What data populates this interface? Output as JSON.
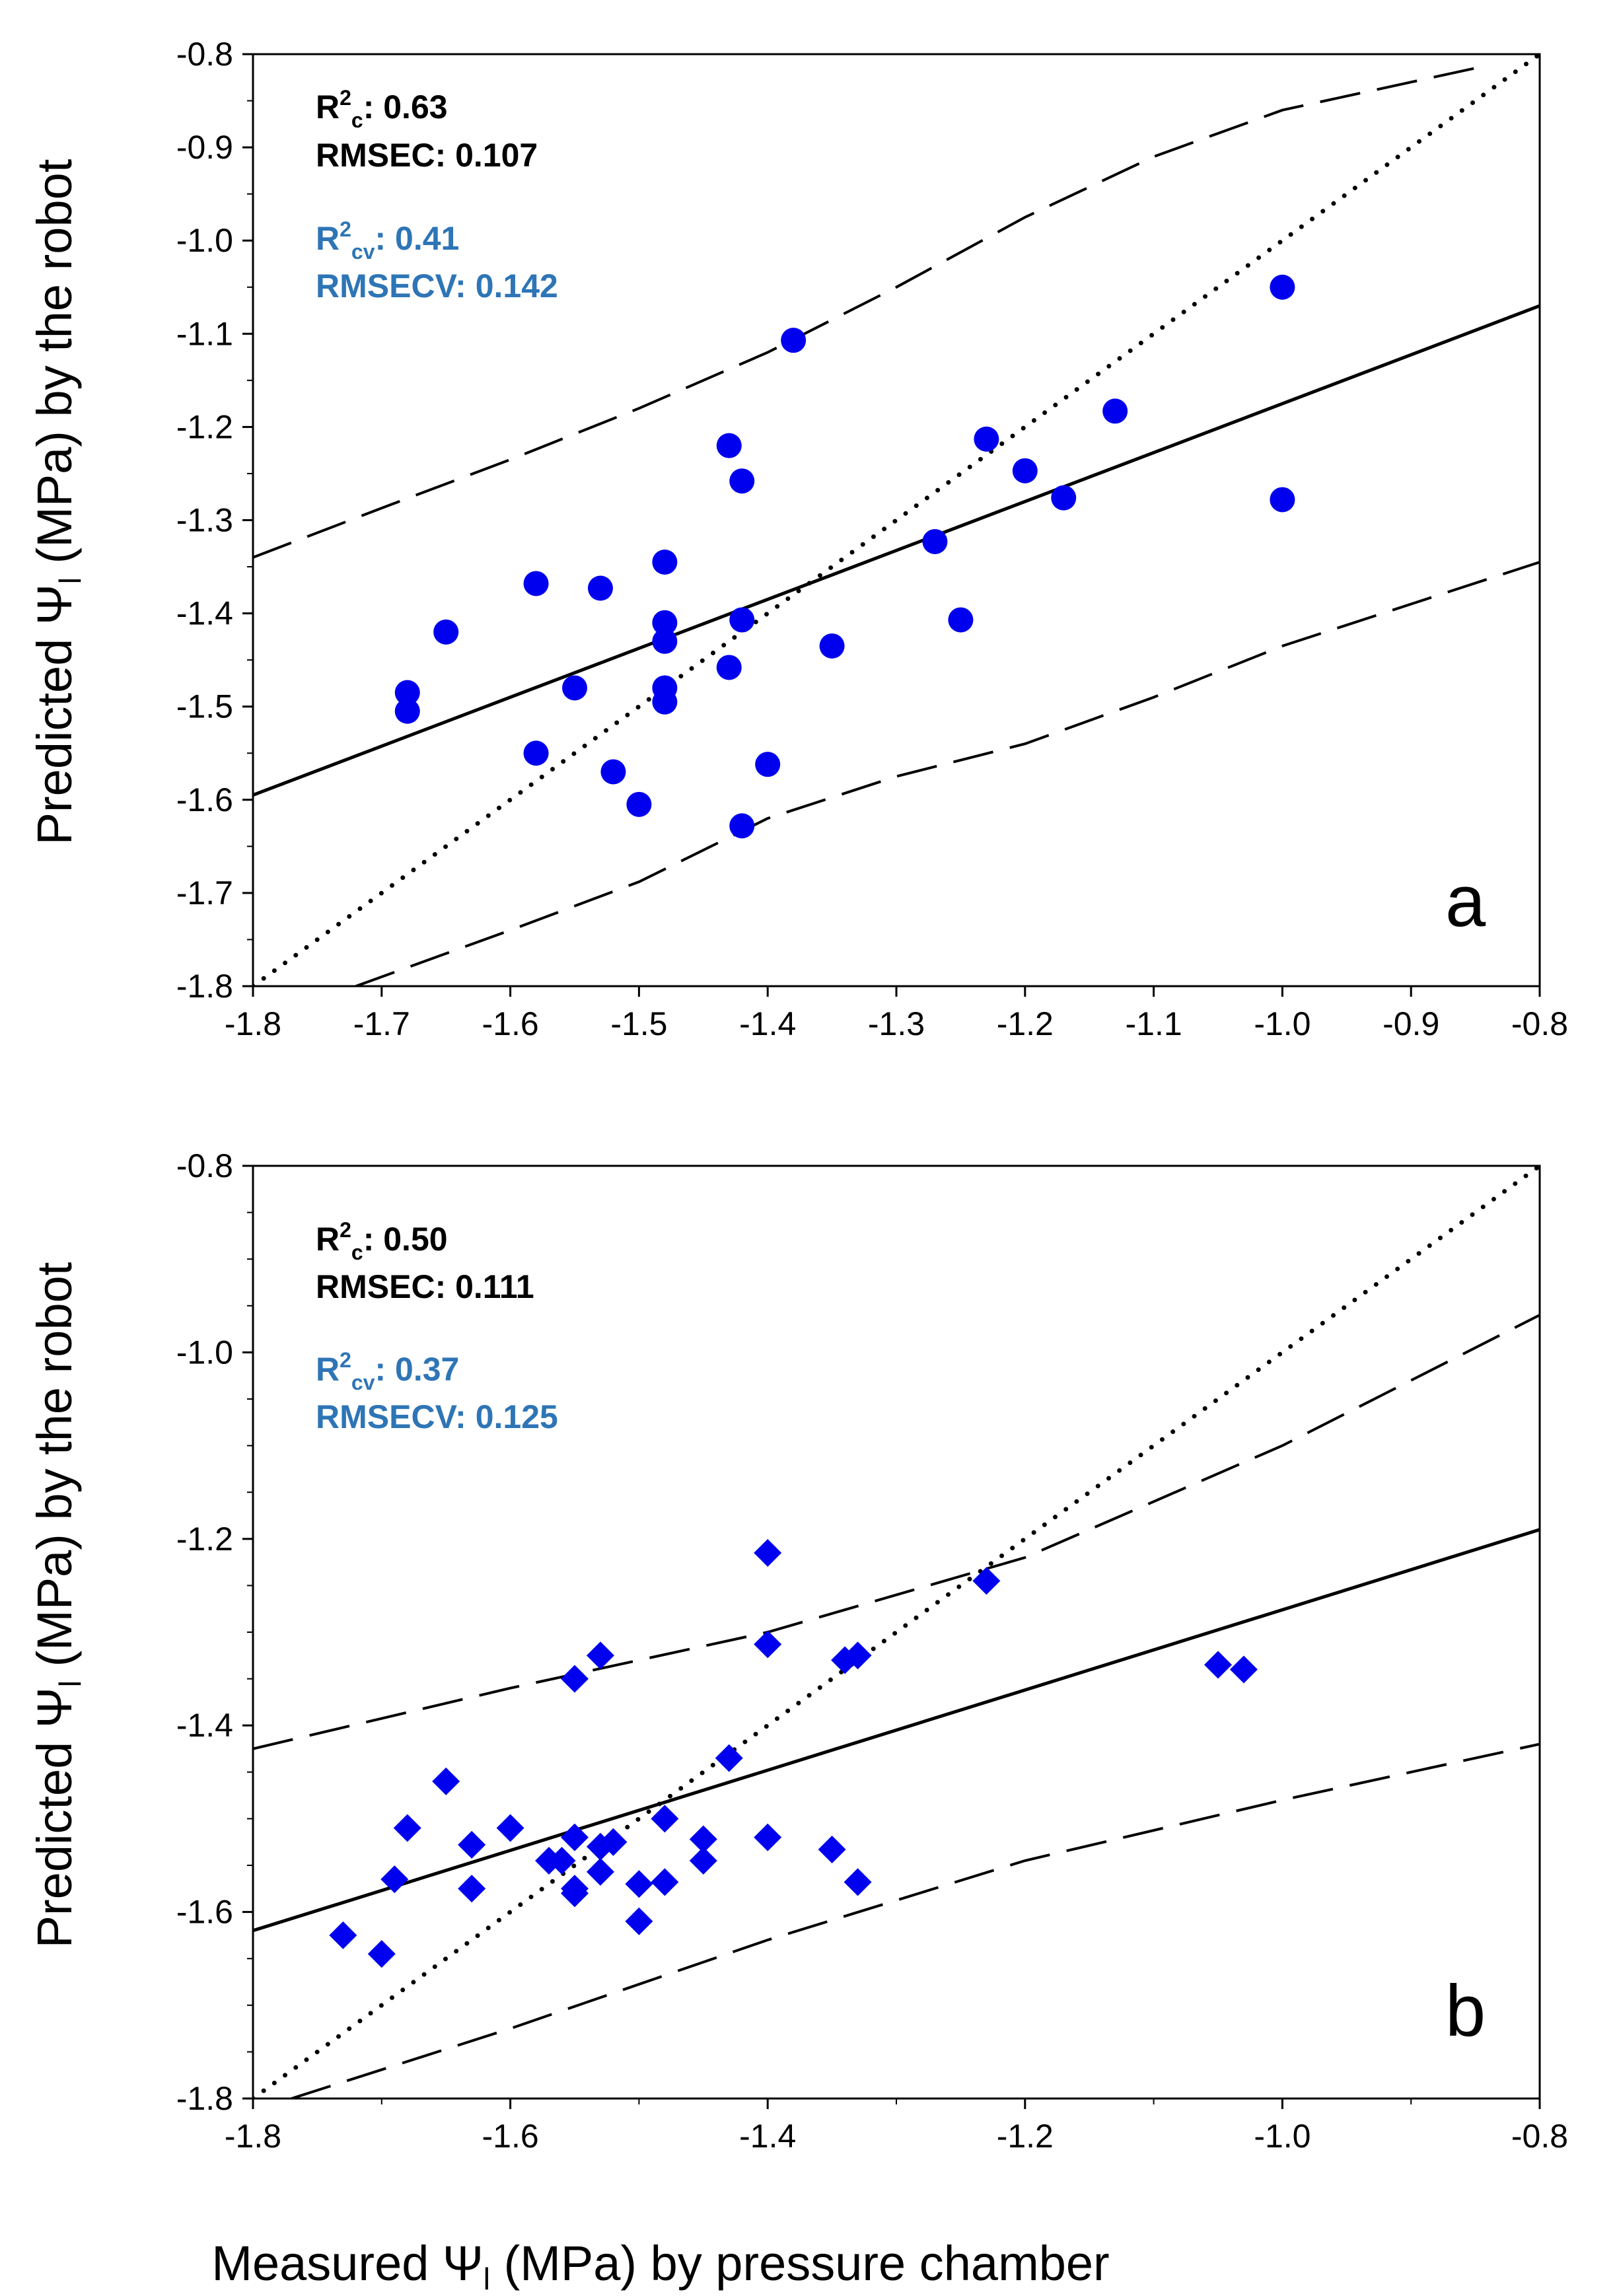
{
  "figure": {
    "xlabel_main": "Measured Ψ",
    "xlabel_sub": "l",
    "xlabel_rest": " (MPa) by pressure chamber",
    "ylabel_main": "Predicted Ψ",
    "ylabel_sub": "l",
    "ylabel_rest": " (MPa) by the robot"
  },
  "colors": {
    "points": "#0000ee",
    "stats_cv": "#2e75b6",
    "stats_c": "#000000",
    "lines": "#000000"
  },
  "chart_data": [
    {
      "type": "scatter",
      "panel_label": "a",
      "marker": "circle",
      "xlim": [
        -1.8,
        -0.8
      ],
      "ylim": [
        -1.8,
        -0.8
      ],
      "xticks": [
        "-1.8",
        "-1.7",
        "-1.6",
        "-1.5",
        "-1.4",
        "-1.3",
        "-1.2",
        "-1.1",
        "-1.0",
        "-0.9",
        "-0.8"
      ],
      "yticks": [
        "-0.8",
        "-0.9",
        "-1.0",
        "-1.1",
        "-1.2",
        "-1.3",
        "-1.4",
        "-1.5",
        "-1.6",
        "-1.7",
        "-1.8"
      ],
      "stats": {
        "r2c_prefix": "R",
        "r2c_sup": "2",
        "r2c_sub": "c",
        "r2c_value": ": 0.63",
        "rmsec": "RMSEC: 0.107",
        "r2cv_prefix": "R",
        "r2cv_sup": "2",
        "r2cv_sub": "cv",
        "r2cv_value": ": 0.41",
        "rmsecv": "RMSECV: 0.142"
      },
      "regression_line": [
        [
          -1.8,
          -1.595
        ],
        [
          -0.8,
          -1.07
        ]
      ],
      "one_to_one_line": [
        [
          -1.8,
          -1.8
        ],
        [
          -0.8,
          -0.8
        ]
      ],
      "prediction_band_upper": [
        [
          -1.8,
          -1.34
        ],
        [
          -1.7,
          -1.287
        ],
        [
          -1.6,
          -1.235
        ],
        [
          -1.5,
          -1.18
        ],
        [
          -1.4,
          -1.12
        ],
        [
          -1.3,
          -1.05
        ],
        [
          -1.2,
          -0.975
        ],
        [
          -1.1,
          -0.91
        ],
        [
          -1.0,
          -0.86
        ],
        [
          -0.9,
          -0.83
        ],
        [
          -0.85,
          -0.815
        ]
      ],
      "prediction_band_lower": [
        [
          -1.72,
          -1.8
        ],
        [
          -1.6,
          -1.74
        ],
        [
          -1.5,
          -1.688
        ],
        [
          -1.4,
          -1.62
        ],
        [
          -1.3,
          -1.575
        ],
        [
          -1.2,
          -1.54
        ],
        [
          -1.1,
          -1.49
        ],
        [
          -1.0,
          -1.435
        ],
        [
          -0.9,
          -1.39
        ],
        [
          -0.8,
          -1.345
        ]
      ],
      "points": [
        {
          "x": -1.68,
          "y": -1.485
        },
        {
          "x": -1.68,
          "y": -1.505
        },
        {
          "x": -1.65,
          "y": -1.42
        },
        {
          "x": -1.58,
          "y": -1.368
        },
        {
          "x": -1.58,
          "y": -1.55
        },
        {
          "x": -1.55,
          "y": -1.48
        },
        {
          "x": -1.53,
          "y": -1.373
        },
        {
          "x": -1.52,
          "y": -1.57
        },
        {
          "x": -1.5,
          "y": -1.605
        },
        {
          "x": -1.48,
          "y": -1.345
        },
        {
          "x": -1.48,
          "y": -1.41
        },
        {
          "x": -1.48,
          "y": -1.43
        },
        {
          "x": -1.48,
          "y": -1.48
        },
        {
          "x": -1.48,
          "y": -1.495
        },
        {
          "x": -1.43,
          "y": -1.22
        },
        {
          "x": -1.43,
          "y": -1.458
        },
        {
          "x": -1.42,
          "y": -1.258
        },
        {
          "x": -1.42,
          "y": -1.407
        },
        {
          "x": -1.42,
          "y": -1.628
        },
        {
          "x": -1.4,
          "y": -1.562
        },
        {
          "x": -1.38,
          "y": -1.107
        },
        {
          "x": -1.35,
          "y": -1.435
        },
        {
          "x": -1.27,
          "y": -1.323
        },
        {
          "x": -1.25,
          "y": -1.407
        },
        {
          "x": -1.23,
          "y": -1.213
        },
        {
          "x": -1.2,
          "y": -1.247
        },
        {
          "x": -1.17,
          "y": -1.276
        },
        {
          "x": -1.13,
          "y": -1.183
        },
        {
          "x": -1.0,
          "y": -1.05
        },
        {
          "x": -1.0,
          "y": -1.278
        }
      ]
    },
    {
      "type": "scatter",
      "panel_label": "b",
      "marker": "diamond",
      "xlim": [
        -1.8,
        -0.8
      ],
      "ylim": [
        -1.8,
        -0.8
      ],
      "xticks": [
        "-1.8",
        "-1.6",
        "-1.4",
        "-1.2",
        "-1.0",
        "-0.8"
      ],
      "yticks": [
        "-0.8",
        "-1.0",
        "-1.2",
        "-1.4",
        "-1.6",
        "-1.8"
      ],
      "stats": {
        "r2c_prefix": "R",
        "r2c_sup": "2",
        "r2c_sub": "c",
        "r2c_value": ": 0.50",
        "rmsec": "RMSEC: 0.111",
        "r2cv_prefix": "R",
        "r2cv_sup": "2",
        "r2cv_sub": "cv",
        "r2cv_value": ": 0.37",
        "rmsecv": "RMSECV: 0.125"
      },
      "regression_line": [
        [
          -1.8,
          -1.62
        ],
        [
          -0.8,
          -1.19
        ]
      ],
      "one_to_one_line": [
        [
          -1.8,
          -1.8
        ],
        [
          -0.8,
          -0.8
        ]
      ],
      "prediction_band_upper": [
        [
          -1.8,
          -1.425
        ],
        [
          -1.6,
          -1.36
        ],
        [
          -1.4,
          -1.3
        ],
        [
          -1.2,
          -1.22
        ],
        [
          -1.0,
          -1.1
        ],
        [
          -0.9,
          -1.03
        ],
        [
          -0.8,
          -0.96
        ]
      ],
      "prediction_band_lower": [
        [
          -1.77,
          -1.8
        ],
        [
          -1.6,
          -1.725
        ],
        [
          -1.4,
          -1.63
        ],
        [
          -1.2,
          -1.545
        ],
        [
          -1.0,
          -1.48
        ],
        [
          -0.8,
          -1.42
        ]
      ],
      "points": [
        {
          "x": -1.73,
          "y": -1.625
        },
        {
          "x": -1.7,
          "y": -1.645
        },
        {
          "x": -1.69,
          "y": -1.565
        },
        {
          "x": -1.68,
          "y": -1.51
        },
        {
          "x": -1.65,
          "y": -1.46
        },
        {
          "x": -1.63,
          "y": -1.528
        },
        {
          "x": -1.63,
          "y": -1.575
        },
        {
          "x": -1.6,
          "y": -1.51
        },
        {
          "x": -1.57,
          "y": -1.545
        },
        {
          "x": -1.56,
          "y": -1.545
        },
        {
          "x": -1.55,
          "y": -1.35
        },
        {
          "x": -1.55,
          "y": -1.52
        },
        {
          "x": -1.55,
          "y": -1.575
        },
        {
          "x": -1.55,
          "y": -1.58
        },
        {
          "x": -1.53,
          "y": -1.325
        },
        {
          "x": -1.53,
          "y": -1.53
        },
        {
          "x": -1.53,
          "y": -1.557
        },
        {
          "x": -1.52,
          "y": -1.525
        },
        {
          "x": -1.5,
          "y": -1.57
        },
        {
          "x": -1.5,
          "y": -1.61
        },
        {
          "x": -1.48,
          "y": -1.5
        },
        {
          "x": -1.48,
          "y": -1.568
        },
        {
          "x": -1.45,
          "y": -1.522
        },
        {
          "x": -1.45,
          "y": -1.545
        },
        {
          "x": -1.43,
          "y": -1.435
        },
        {
          "x": -1.4,
          "y": -1.215
        },
        {
          "x": -1.4,
          "y": -1.313
        },
        {
          "x": -1.4,
          "y": -1.52
        },
        {
          "x": -1.35,
          "y": -1.533
        },
        {
          "x": -1.34,
          "y": -1.33
        },
        {
          "x": -1.33,
          "y": -1.325
        },
        {
          "x": -1.33,
          "y": -1.568
        },
        {
          "x": -1.23,
          "y": -1.245
        },
        {
          "x": -1.05,
          "y": -1.335
        },
        {
          "x": -1.03,
          "y": -1.34
        }
      ]
    }
  ]
}
